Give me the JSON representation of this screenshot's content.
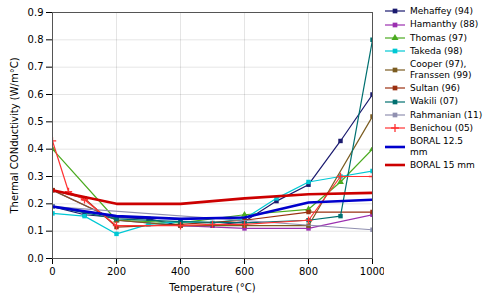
{
  "chart_data": {
    "type": "line",
    "xlabel": "Temperature (°C)",
    "ylabel": "Thermal CONductivity (W/m°C)",
    "xlim": [
      0,
      1000
    ],
    "ylim": [
      0,
      0.9
    ],
    "xticks": [
      0,
      200,
      400,
      600,
      800,
      1000
    ],
    "yticks": [
      {
        "value": 0,
        "label": "0.0"
      },
      0.1,
      0.2,
      0.3,
      0.4,
      0.5,
      0.6,
      0.7,
      0.8,
      0.9
    ],
    "grid": true,
    "legend": "right",
    "series": [
      {
        "name": "Mehaffey (94)",
        "color": "#1a1a6e",
        "marker": "square",
        "x": [
          0,
          100,
          200,
          300,
          400,
          500,
          600,
          700,
          800,
          900,
          1000
        ],
        "values": [
          0.19,
          0.16,
          0.15,
          0.145,
          0.12,
          0.12,
          0.135,
          0.21,
          0.27,
          0.43,
          0.6
        ]
      },
      {
        "name": "Hamanthy (88)",
        "color": "#9b30b0",
        "marker": "square",
        "x": [
          0,
          200,
          400,
          600,
          800,
          1000
        ],
        "values": [
          0.25,
          0.14,
          0.12,
          0.11,
          0.11,
          0.16
        ]
      },
      {
        "name": "Thomas (97)",
        "color": "#4aaa1f",
        "marker": "triangle",
        "x": [
          0,
          200,
          400,
          600,
          800,
          900,
          1000
        ],
        "values": [
          0.4,
          0.14,
          0.13,
          0.16,
          0.18,
          0.28,
          0.4
        ]
      },
      {
        "name": "Takeda (98)",
        "color": "#00c8d4",
        "marker": "square",
        "x": [
          0,
          100,
          200,
          300,
          400,
          500,
          600,
          700,
          800,
          900,
          1000
        ],
        "values": [
          0.165,
          0.155,
          0.09,
          0.125,
          0.135,
          0.13,
          0.145,
          0.22,
          0.28,
          0.3,
          0.32
        ]
      },
      {
        "name": "Cooper (97),\nFranssen (99)",
        "color": "#7b5c20",
        "marker": "square",
        "x": [
          0,
          200,
          400,
          600,
          800,
          1000
        ],
        "values": [
          0.25,
          0.14,
          0.12,
          0.12,
          0.12,
          0.52
        ]
      },
      {
        "name": "Sultan (96)",
        "color": "#9b3010",
        "marker": "square",
        "x": [
          0,
          100,
          200,
          400,
          600,
          800,
          1000
        ],
        "values": [
          0.25,
          0.22,
          0.115,
          0.125,
          0.14,
          0.17,
          0.17
        ]
      },
      {
        "name": "Wakili (07)",
        "color": "#007070",
        "marker": "square",
        "x": [
          0,
          200,
          400,
          600,
          800,
          900,
          1000
        ],
        "values": [
          0.19,
          0.145,
          0.135,
          0.13,
          0.14,
          0.155,
          0.8
        ]
      },
      {
        "name": "Rahmanian (11)",
        "color": "#9090b0",
        "marker": "square",
        "x": [
          0,
          1000
        ],
        "values": [
          0.19,
          0.105
        ]
      },
      {
        "name": "Benichou (05)",
        "color": "#ff3333",
        "marker": "plus",
        "x": [
          0,
          50,
          100,
          200,
          400,
          500,
          600,
          800,
          900,
          1000
        ],
        "values": [
          0.43,
          0.245,
          0.215,
          0.12,
          0.12,
          0.125,
          0.125,
          0.14,
          0.3,
          0.3
        ]
      },
      {
        "name": "BORAL 12.5\nmm",
        "color": "#0000cc",
        "marker": "none",
        "x": [
          0,
          200,
          400,
          600,
          800,
          1000
        ],
        "values": [
          0.19,
          0.155,
          0.145,
          0.15,
          0.205,
          0.215
        ]
      },
      {
        "name": "BORAL 15 mm",
        "color": "#cc0000",
        "marker": "none",
        "x": [
          0,
          200,
          400,
          600,
          800,
          1000
        ],
        "values": [
          0.25,
          0.2,
          0.2,
          0.22,
          0.235,
          0.24
        ]
      }
    ]
  }
}
